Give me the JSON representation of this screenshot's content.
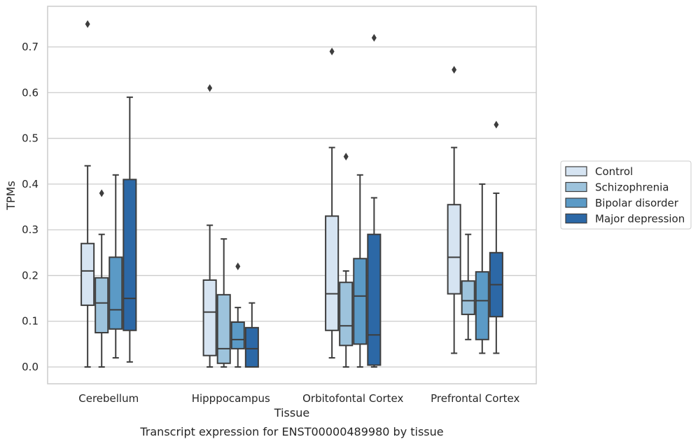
{
  "chart_data": {
    "type": "boxplot",
    "xlabel": "Tissue",
    "ylabel": "TPMs",
    "caption": "Transcript expression for ENST00000489980 by tissue",
    "ylim": [
      -0.035,
      0.79
    ],
    "yticks": [
      0.0,
      0.1,
      0.2,
      0.3,
      0.4,
      0.5,
      0.6,
      0.7
    ],
    "ytick_labels": [
      "0.0",
      "0.1",
      "0.2",
      "0.3",
      "0.4",
      "0.5",
      "0.6",
      "0.7"
    ],
    "grid": "horizontal",
    "legend_position": "right",
    "categories": [
      "Cerebellum",
      "Hipppocampus",
      "Orbitofontal Cortex",
      "Prefrontal Cortex"
    ],
    "series": [
      {
        "name": "Control",
        "color": "#d6e4f2",
        "boxes": [
          {
            "whisker_low": 0.0,
            "q1": 0.135,
            "median": 0.21,
            "q3": 0.27,
            "whisker_high": 0.44,
            "outliers": [
              0.75
            ]
          },
          {
            "whisker_low": 0.0,
            "q1": 0.025,
            "median": 0.12,
            "q3": 0.19,
            "whisker_high": 0.31,
            "outliers": [
              0.61
            ]
          },
          {
            "whisker_low": 0.02,
            "q1": 0.08,
            "median": 0.16,
            "q3": 0.33,
            "whisker_high": 0.48,
            "outliers": [
              0.69
            ]
          },
          {
            "whisker_low": 0.03,
            "q1": 0.16,
            "median": 0.24,
            "q3": 0.355,
            "whisker_high": 0.48,
            "outliers": [
              0.65
            ]
          }
        ]
      },
      {
        "name": "Schizophrenia",
        "color": "#9dc3dc",
        "boxes": [
          {
            "whisker_low": 0.0,
            "q1": 0.075,
            "median": 0.14,
            "q3": 0.195,
            "whisker_high": 0.29,
            "outliers": [
              0.38
            ]
          },
          {
            "whisker_low": 0.0,
            "q1": 0.008,
            "median": 0.04,
            "q3": 0.158,
            "whisker_high": 0.28,
            "outliers": []
          },
          {
            "whisker_low": 0.0,
            "q1": 0.047,
            "median": 0.09,
            "q3": 0.185,
            "whisker_high": 0.21,
            "outliers": [
              0.46
            ]
          },
          {
            "whisker_low": 0.06,
            "q1": 0.115,
            "median": 0.145,
            "q3": 0.188,
            "whisker_high": 0.29,
            "outliers": []
          }
        ]
      },
      {
        "name": "Bipolar disorder",
        "color": "#5b9ac6",
        "boxes": [
          {
            "whisker_low": 0.02,
            "q1": 0.083,
            "median": 0.125,
            "q3": 0.24,
            "whisker_high": 0.42,
            "outliers": []
          },
          {
            "whisker_low": 0.0,
            "q1": 0.04,
            "median": 0.06,
            "q3": 0.098,
            "whisker_high": 0.13,
            "outliers": [
              0.22
            ]
          },
          {
            "whisker_low": 0.0,
            "q1": 0.05,
            "median": 0.155,
            "q3": 0.237,
            "whisker_high": 0.42,
            "outliers": []
          },
          {
            "whisker_low": 0.03,
            "q1": 0.06,
            "median": 0.145,
            "q3": 0.208,
            "whisker_high": 0.4,
            "outliers": []
          }
        ]
      },
      {
        "name": "Major depression",
        "color": "#2c68a6",
        "boxes": [
          {
            "whisker_low": 0.011,
            "q1": 0.08,
            "median": 0.15,
            "q3": 0.41,
            "whisker_high": 0.59,
            "outliers": []
          },
          {
            "whisker_low": 0.0,
            "q1": 0.0,
            "median": 0.04,
            "q3": 0.086,
            "whisker_high": 0.14,
            "outliers": []
          },
          {
            "whisker_low": 0.0,
            "q1": 0.004,
            "median": 0.07,
            "q3": 0.29,
            "whisker_high": 0.37,
            "outliers": [
              0.72
            ]
          },
          {
            "whisker_low": 0.03,
            "q1": 0.11,
            "median": 0.18,
            "q3": 0.25,
            "whisker_high": 0.38,
            "outliers": [
              0.53
            ]
          }
        ]
      }
    ]
  }
}
